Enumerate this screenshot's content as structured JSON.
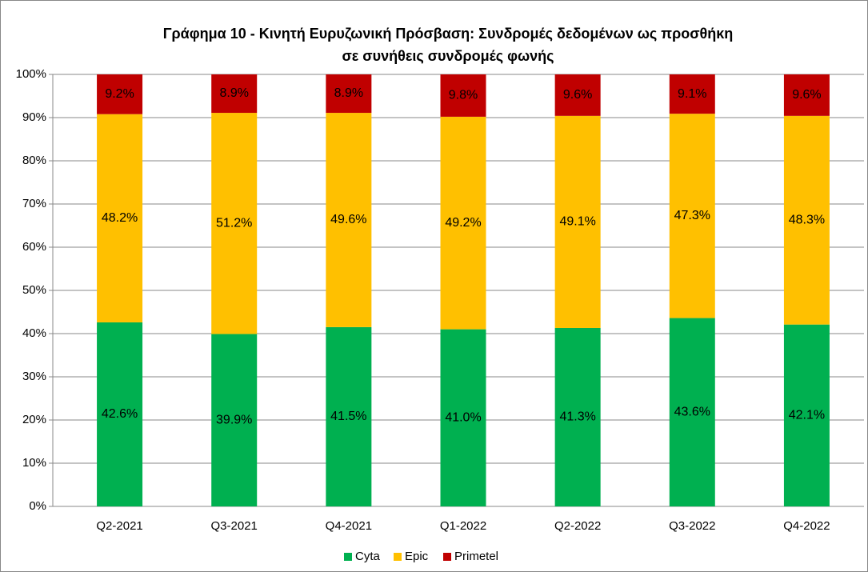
{
  "chart_data": {
    "type": "stacked_bar",
    "title": [
      "Γράφημα 10 - Κινητή Ευρυζωνική Πρόσβαση: Συνδρομές δεδομένων ως προσθήκη",
      "σε συνήθεις συνδρομές φωνής"
    ],
    "categories": [
      "Q2-2021",
      "Q3-2021",
      "Q4-2021",
      "Q1-2022",
      "Q2-2022",
      "Q3-2022",
      "Q4-2022"
    ],
    "series": [
      {
        "name": "Cyta",
        "color": "#00b050",
        "values": [
          42.6,
          39.9,
          41.5,
          41.0,
          41.3,
          43.6,
          42.1
        ],
        "value_labels": [
          "42.6%",
          "39.9%",
          "41.5%",
          "41.0%",
          "41.3%",
          "43.6%",
          "42.1%"
        ]
      },
      {
        "name": "Epic",
        "color": "#ffc000",
        "values": [
          48.2,
          51.2,
          49.6,
          49.2,
          49.1,
          47.3,
          48.3
        ],
        "value_labels": [
          "48.2%",
          "51.2%",
          "49.6%",
          "49.2%",
          "49.1%",
          "47.3%",
          "48.3%"
        ]
      },
      {
        "name": "Primetel",
        "color": "#c00000",
        "values": [
          9.2,
          8.9,
          8.9,
          9.8,
          9.6,
          9.1,
          9.6
        ],
        "value_labels": [
          "9.2%",
          "8.9%",
          "8.9%",
          "9.8%",
          "9.6%",
          "9.1%",
          "9.6%"
        ]
      }
    ],
    "ylim": [
      0,
      100
    ],
    "yticks": [
      {
        "value": 0,
        "label": "0%"
      },
      {
        "value": 10,
        "label": "10%"
      },
      {
        "value": 20,
        "label": "20%"
      },
      {
        "value": 30,
        "label": "30%"
      },
      {
        "value": 40,
        "label": "40%"
      },
      {
        "value": 50,
        "label": "50%"
      },
      {
        "value": 60,
        "label": "60%"
      },
      {
        "value": 70,
        "label": "70%"
      },
      {
        "value": 80,
        "label": "80%"
      },
      {
        "value": 90,
        "label": "90%"
      },
      {
        "value": 100,
        "label": "100%"
      }
    ],
    "grid": true,
    "legend": "bottom"
  }
}
